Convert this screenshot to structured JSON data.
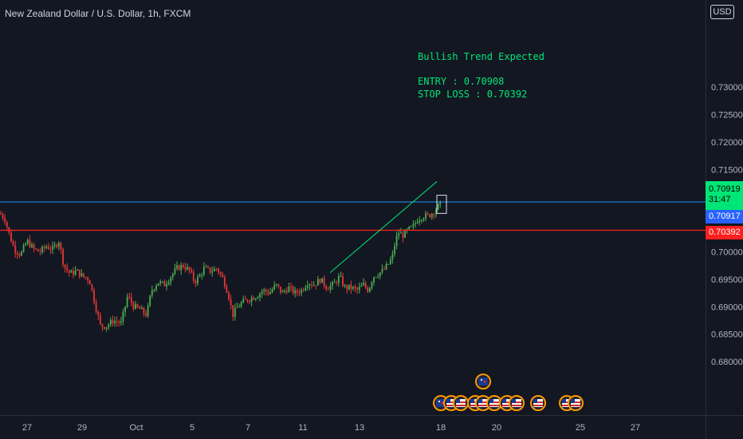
{
  "header": {
    "title": "New Zealand Dollar / U.S. Dollar, 1h, FXCM"
  },
  "currency": "USD",
  "annotation": {
    "line1": "Bullish Trend Expected",
    "line2": "ENTRY : 0.70908",
    "line3": "STOP LOSS : 0.70392"
  },
  "price_labels": {
    "live": "0.70919",
    "countdown": "31:47",
    "bid": "0.70917",
    "stop": "0.70392"
  },
  "colors": {
    "background": "#131722",
    "up": "#26a69a",
    "down": "#ef5350",
    "candle_up": "#4caf50",
    "candle_down": "#e53935",
    "entry_line": "#2196f3",
    "stop_line": "#ff1f1f",
    "trend_line": "#00e676",
    "annotation": "#00e676"
  },
  "chart_data": {
    "type": "candlestick",
    "title": "New Zealand Dollar / U.S. Dollar, 1h, FXCM",
    "x_ticks": [
      "27",
      "29",
      "Oct",
      "5",
      "7",
      "11",
      "13",
      "18",
      "20",
      "25",
      "27"
    ],
    "y_ticks": [
      "0.73000",
      "0.72500",
      "0.72000",
      "0.71500",
      "0.70000",
      "0.69500",
      "0.69000",
      "0.68500",
      "0.68000"
    ],
    "ylim": [
      0.6775,
      0.7365
    ],
    "grid": false,
    "horizontal_lines": [
      {
        "name": "ENTRY",
        "value": 0.70908,
        "color": "#2196f3"
      },
      {
        "name": "STOP LOSS",
        "value": 0.70392,
        "color": "#ff1f1f"
      }
    ],
    "close_path": [
      {
        "x": 0,
        "y": 0.707
      },
      {
        "x": 6,
        "y": 0.706
      },
      {
        "x": 12,
        "y": 0.703
      },
      {
        "x": 18,
        "y": 0.7005
      },
      {
        "x": 26,
        "y": 0.6995
      },
      {
        "x": 34,
        "y": 0.702
      },
      {
        "x": 42,
        "y": 0.7005
      },
      {
        "x": 50,
        "y": 0.7
      },
      {
        "x": 58,
        "y": 0.701
      },
      {
        "x": 66,
        "y": 0.7005
      },
      {
        "x": 74,
        "y": 0.702
      },
      {
        "x": 80,
        "y": 0.6975
      },
      {
        "x": 88,
        "y": 0.696
      },
      {
        "x": 96,
        "y": 0.6965
      },
      {
        "x": 104,
        "y": 0.6955
      },
      {
        "x": 112,
        "y": 0.695
      },
      {
        "x": 120,
        "y": 0.69
      },
      {
        "x": 126,
        "y": 0.6865
      },
      {
        "x": 134,
        "y": 0.6865
      },
      {
        "x": 142,
        "y": 0.6875
      },
      {
        "x": 152,
        "y": 0.687
      },
      {
        "x": 160,
        "y": 0.692
      },
      {
        "x": 168,
        "y": 0.69
      },
      {
        "x": 176,
        "y": 0.6895
      },
      {
        "x": 184,
        "y": 0.6885
      },
      {
        "x": 190,
        "y": 0.693
      },
      {
        "x": 198,
        "y": 0.6945
      },
      {
        "x": 206,
        "y": 0.694
      },
      {
        "x": 214,
        "y": 0.6955
      },
      {
        "x": 222,
        "y": 0.697
      },
      {
        "x": 230,
        "y": 0.6975
      },
      {
        "x": 238,
        "y": 0.6965
      },
      {
        "x": 244,
        "y": 0.6945
      },
      {
        "x": 250,
        "y": 0.6955
      },
      {
        "x": 256,
        "y": 0.697
      },
      {
        "x": 264,
        "y": 0.6965
      },
      {
        "x": 272,
        "y": 0.697
      },
      {
        "x": 280,
        "y": 0.695
      },
      {
        "x": 286,
        "y": 0.6925
      },
      {
        "x": 292,
        "y": 0.6885
      },
      {
        "x": 298,
        "y": 0.69
      },
      {
        "x": 306,
        "y": 0.691
      },
      {
        "x": 314,
        "y": 0.6915
      },
      {
        "x": 322,
        "y": 0.692
      },
      {
        "x": 330,
        "y": 0.693
      },
      {
        "x": 338,
        "y": 0.6925
      },
      {
        "x": 346,
        "y": 0.694
      },
      {
        "x": 354,
        "y": 0.6925
      },
      {
        "x": 362,
        "y": 0.6935
      },
      {
        "x": 370,
        "y": 0.6925
      },
      {
        "x": 378,
        "y": 0.693
      },
      {
        "x": 386,
        "y": 0.6945
      },
      {
        "x": 394,
        "y": 0.694
      },
      {
        "x": 402,
        "y": 0.695
      },
      {
        "x": 410,
        "y": 0.6935
      },
      {
        "x": 418,
        "y": 0.694
      },
      {
        "x": 426,
        "y": 0.6955
      },
      {
        "x": 432,
        "y": 0.6935
      },
      {
        "x": 440,
        "y": 0.6935
      },
      {
        "x": 448,
        "y": 0.693
      },
      {
        "x": 456,
        "y": 0.694
      },
      {
        "x": 462,
        "y": 0.693
      },
      {
        "x": 468,
        "y": 0.6955
      },
      {
        "x": 474,
        "y": 0.696
      },
      {
        "x": 480,
        "y": 0.6965
      },
      {
        "x": 486,
        "y": 0.6975
      },
      {
        "x": 492,
        "y": 0.699
      },
      {
        "x": 496,
        "y": 0.702
      },
      {
        "x": 500,
        "y": 0.7035
      },
      {
        "x": 506,
        "y": 0.703
      },
      {
        "x": 512,
        "y": 0.704
      },
      {
        "x": 518,
        "y": 0.7045
      },
      {
        "x": 524,
        "y": 0.706
      },
      {
        "x": 530,
        "y": 0.7065
      },
      {
        "x": 536,
        "y": 0.7065
      },
      {
        "x": 542,
        "y": 0.707
      },
      {
        "x": 548,
        "y": 0.708
      },
      {
        "x": 553,
        "y": 0.7088
      }
    ],
    "trend_line": {
      "from": {
        "x": 414,
        "y": 0.6962
      },
      "to": {
        "x": 548,
        "y": 0.7128
      }
    },
    "highlight_box": {
      "x_from": 548,
      "x_to": 560,
      "y_from": 0.707,
      "y_to": 0.7103
    },
    "event_icons": [
      {
        "x": 553,
        "kind": "NZD"
      },
      {
        "x": 566,
        "kind": "USD"
      },
      {
        "x": 578,
        "kind": "USD"
      },
      {
        "x": 596,
        "kind": "USD"
      },
      {
        "x": 606,
        "kind": "NZD"
      },
      {
        "x": 606,
        "kind": "USD"
      },
      {
        "x": 620,
        "kind": "USD"
      },
      {
        "x": 636,
        "kind": "USD"
      },
      {
        "x": 648,
        "kind": "USD"
      },
      {
        "x": 675,
        "kind": "USD"
      },
      {
        "x": 711,
        "kind": "USD"
      },
      {
        "x": 722,
        "kind": "USD"
      }
    ]
  }
}
